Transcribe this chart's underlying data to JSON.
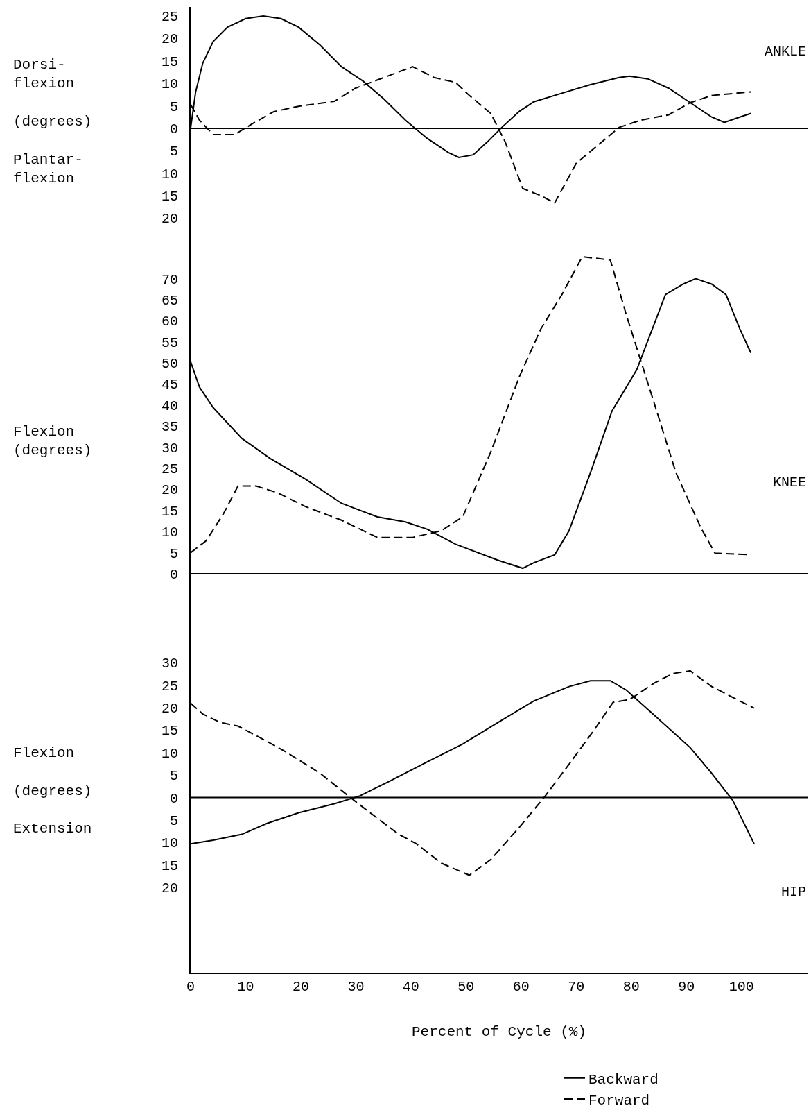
{
  "chart_data": [
    {
      "type": "line",
      "title": "ANKLE",
      "ylabel": "Dorsi-\nflexion\n\n(degrees)\n\nPlantar-\nflexion",
      "legend": "bottom right",
      "xlim": [
        0,
        112
      ],
      "ylim": [
        -25,
        27
      ],
      "tick_labels": "y",
      "yticks": [
        25,
        20,
        15,
        10,
        5,
        0,
        {
          "value": -5,
          "label": "5"
        },
        {
          "value": -10,
          "label": "10"
        },
        {
          "value": -15,
          "label": "15"
        },
        {
          "value": -20,
          "label": "20"
        }
      ],
      "ref_lines": [
        {
          "axis": "y",
          "value": 0,
          "color": "#000000"
        }
      ],
      "series": [
        {
          "name": "Backward",
          "color": "#000000",
          "line_style": "solid",
          "x": [
            0,
            0.9,
            2.2,
            4.1,
            6.7,
            10,
            13.2,
            16.4,
            19.6,
            23.5,
            27.4,
            31.3,
            35.1,
            39,
            42.9,
            46.8,
            48.7,
            51.3,
            53.9,
            56.5,
            59.7,
            62.3,
            67.4,
            72.6,
            77.8,
            79.7,
            83,
            86.8,
            90.7,
            94.6,
            96.9,
            99.7,
            101.7
          ],
          "values": [
            0,
            8,
            14.5,
            19.3,
            22.5,
            24.4,
            25,
            24.4,
            22.5,
            18.5,
            13.7,
            10.5,
            6.5,
            1.8,
            -2.2,
            -5.4,
            -6.5,
            -5.9,
            -3,
            0.2,
            3.8,
            5.9,
            7.8,
            9.7,
            11.3,
            11.6,
            11,
            8.9,
            5.7,
            2.5,
            1.3,
            2.5,
            3.3
          ]
        },
        {
          "name": "Forward",
          "color": "#000000",
          "line_style": "dashed",
          "x": [
            0,
            1.6,
            4.1,
            8,
            11.2,
            15.1,
            19.6,
            26.1,
            29.9,
            35.1,
            40.3,
            44.2,
            48.1,
            50.6,
            54.5,
            57.1,
            60.3,
            63.6,
            66.1,
            70,
            73.9,
            77.8,
            81.7,
            86.8,
            90.7,
            94.6,
            101.7
          ],
          "values": [
            5.3,
            1.8,
            -1.4,
            -1.4,
            1,
            3.7,
            4.9,
            6,
            8.9,
            11.3,
            13.7,
            11.3,
            10.2,
            7.3,
            3.3,
            -3,
            -13.4,
            -15,
            -16.6,
            -7.8,
            -3.8,
            0.2,
            1.8,
            3,
            5.7,
            7.3,
            8.1
          ]
        }
      ]
    },
    {
      "type": "line",
      "title": "KNEE",
      "ylabel": "Flexion\n(degrees)",
      "xlim": [
        0,
        112
      ],
      "ylim": [
        -3,
        79
      ],
      "tick_labels": "y",
      "yticks": [
        0,
        5,
        10,
        15,
        20,
        25,
        30,
        35,
        40,
        45,
        50,
        55,
        60,
        65,
        70
      ],
      "ref_lines": [
        {
          "axis": "y",
          "value": 0,
          "color": "#000000"
        }
      ],
      "series": [
        {
          "color": "#000000",
          "line_style": "solid",
          "x": [
            0,
            1.6,
            4.1,
            9.3,
            14.5,
            20.9,
            27.4,
            33.9,
            39,
            42.9,
            48.1,
            55.8,
            60.3,
            62.3,
            66.1,
            68.7,
            72.6,
            76.5,
            81,
            86.2,
            89.4,
            91.7,
            94.6,
            97.2,
            99.7,
            101.7
          ],
          "values": [
            50.3,
            44.3,
            39.4,
            32.1,
            27.3,
            22.4,
            16.7,
            13.5,
            12.3,
            10.6,
            7,
            3.2,
            1.3,
            2.6,
            4.5,
            10.2,
            24,
            38.6,
            48.4,
            66.2,
            68.7,
            70,
            68.7,
            66.2,
            58.1,
            52.4
          ]
        },
        {
          "color": "#000000",
          "line_style": "dashed",
          "x": [
            0,
            2.8,
            6,
            8.6,
            11.9,
            15.8,
            20.9,
            27.4,
            33.9,
            40.3,
            45.5,
            49.4,
            54.5,
            59.7,
            63.6,
            67.4,
            71.1,
            76.2,
            79.1,
            84.2,
            88.1,
            92.6,
            95.2,
            101.7
          ],
          "values": [
            5,
            7.8,
            14.3,
            20.8,
            20.8,
            19.2,
            15.9,
            12.7,
            8.6,
            8.6,
            10.2,
            13.5,
            28.9,
            46.8,
            58.1,
            66.2,
            75.2,
            74.4,
            61.4,
            40.3,
            24,
            11,
            4.9,
            4.5
          ]
        }
      ]
    },
    {
      "type": "line",
      "title": "HIP",
      "ylabel": "Flexion\n\n(degrees)\n\nExtension",
      "xlabel": "Percent of Cycle (%)",
      "xlim": [
        0,
        112
      ],
      "ylim": [
        -39,
        47
      ],
      "xticks": [
        0,
        10,
        20,
        30,
        40,
        50,
        60,
        70,
        80,
        90,
        100
      ],
      "yticks": [
        30,
        25,
        20,
        15,
        10,
        5,
        0,
        {
          "value": -5,
          "label": "5"
        },
        {
          "value": -10,
          "label": "10"
        },
        {
          "value": -15,
          "label": "15"
        },
        {
          "value": -20,
          "label": "20"
        }
      ],
      "ref_lines": [
        {
          "axis": "y",
          "value": 0,
          "color": "#000000"
        }
      ],
      "series": [
        {
          "color": "#000000",
          "line_style": "solid",
          "x": [
            0,
            4.1,
            9.3,
            13.8,
            19.6,
            26.1,
            30.6,
            36.4,
            42.9,
            49.4,
            55.8,
            62.3,
            68.7,
            72.6,
            76.2,
            79.1,
            84.2,
            90.7,
            94.6,
            98.4,
            102.3
          ],
          "values": [
            -10.3,
            -9.5,
            -8.2,
            -5.8,
            -3.4,
            -1.4,
            0.3,
            3.8,
            7.9,
            11.9,
            16.7,
            21.5,
            24.7,
            26,
            26,
            23.9,
            18.3,
            11.1,
            5.4,
            -0.6,
            -10.3
          ]
        },
        {
          "color": "#000000",
          "line_style": "dashed",
          "x": [
            0,
            2.2,
            5.4,
            8.6,
            11.9,
            17.1,
            23.5,
            28.7,
            32.6,
            37.8,
            41,
            45.5,
            50.6,
            54.5,
            59.7,
            64.3,
            68.7,
            73.3,
            76.7,
            79.7,
            84.2,
            87.5,
            90.7,
            94.6,
            98.4,
            102.3
          ],
          "values": [
            21,
            18.6,
            16.7,
            15.9,
            13.8,
            10.3,
            5.4,
            0.3,
            -3.4,
            -8.2,
            -10.3,
            -14.6,
            -17.3,
            -13.8,
            -6.6,
            0.2,
            7.4,
            15.1,
            21.2,
            21.8,
            25.5,
            27.6,
            28.2,
            24.7,
            22.3,
            19.9
          ]
        }
      ]
    }
  ]
}
